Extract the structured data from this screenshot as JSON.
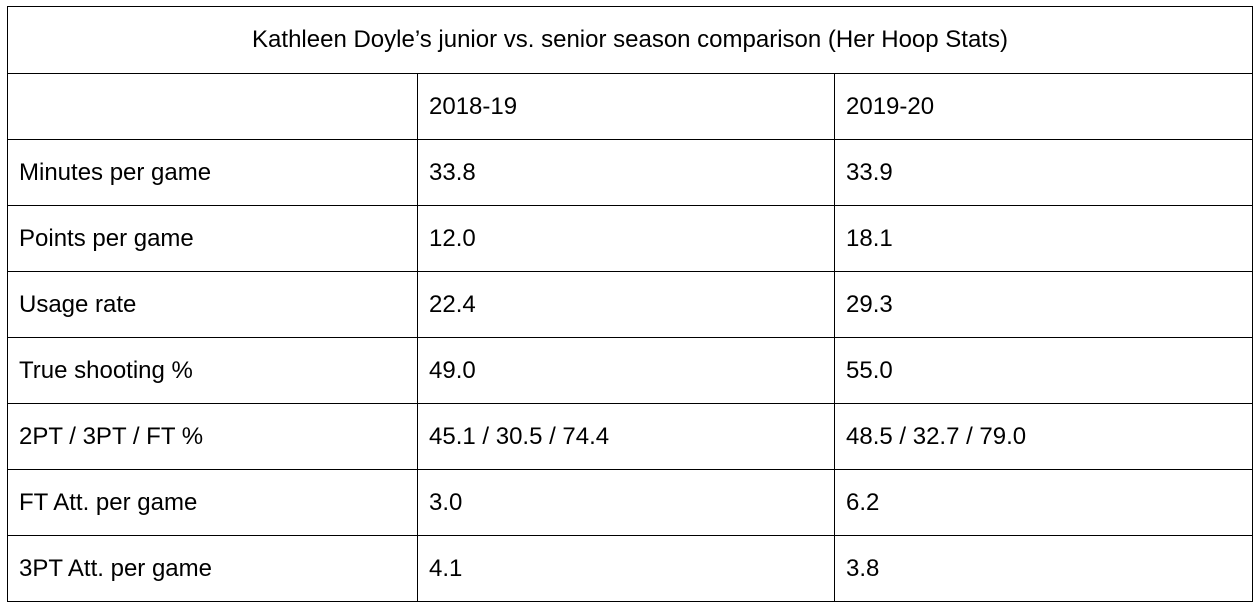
{
  "table": {
    "title": "Kathleen Doyle’s junior vs. senior season comparison (Her Hoop Stats)",
    "header": [
      "",
      "2018-19",
      "2019-20"
    ],
    "rows": [
      [
        "Minutes per game",
        "33.8",
        "33.9"
      ],
      [
        "Points per game",
        "12.0",
        "18.1"
      ],
      [
        "Usage rate",
        "22.4",
        "29.3"
      ],
      [
        "True shooting %",
        "49.0",
        "55.0"
      ],
      [
        "2PT / 3PT / FT %",
        "45.1 / 30.5 / 74.4",
        "48.5 / 32.7 / 79.0"
      ],
      [
        "FT Att. per game",
        "3.0",
        "6.2"
      ],
      [
        "3PT Att. per game",
        "4.1",
        "3.8"
      ]
    ]
  }
}
